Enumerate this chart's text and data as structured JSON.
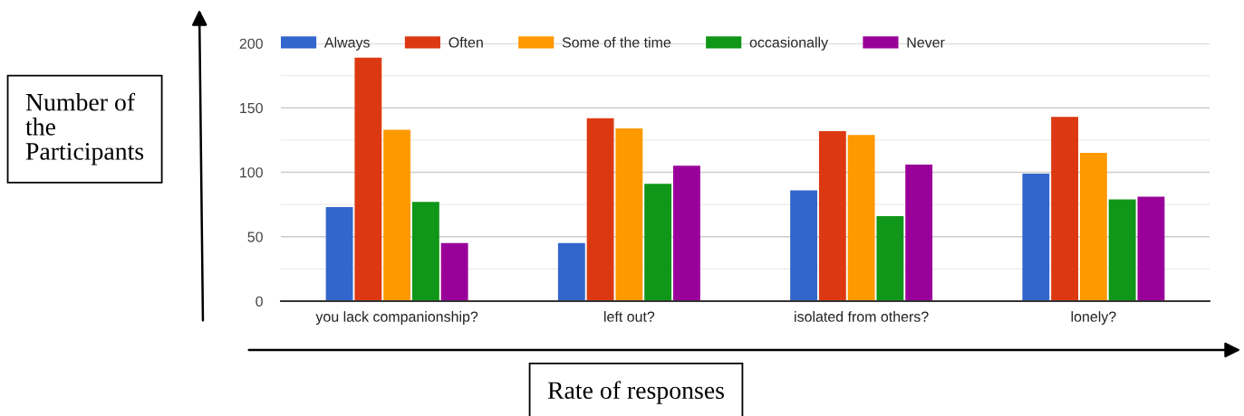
{
  "chart_data": {
    "type": "bar",
    "xlabel": "Rate of responses",
    "ylabel": "Number of\nthe\nParticipants",
    "categories": [
      "you lack companionship?",
      "left out?",
      "isolated from others?",
      "lonely?"
    ],
    "series": [
      {
        "name": "Always",
        "color": "#3366cc",
        "values": [
          73,
          45,
          86,
          99
        ]
      },
      {
        "name": "Often",
        "color": "#dc3912",
        "values": [
          189,
          142,
          132,
          143
        ]
      },
      {
        "name": "Some of the time",
        "color": "#ff9900",
        "values": [
          133,
          134,
          129,
          115
        ]
      },
      {
        "name": "occasionally",
        "color": "#109618",
        "values": [
          77,
          91,
          66,
          79
        ]
      },
      {
        "name": "Never",
        "color": "#990099",
        "values": [
          45,
          105,
          106,
          81
        ]
      }
    ],
    "ylim": [
      0,
      200
    ],
    "yticks": [
      0,
      {
        "value": 25,
        "label": null
      },
      50,
      {
        "value": 75,
        "label": null
      },
      100,
      {
        "value": 125,
        "label": null
      },
      150,
      {
        "value": 175,
        "label": null
      },
      200
    ],
    "grid": "y",
    "legend": "top left"
  }
}
